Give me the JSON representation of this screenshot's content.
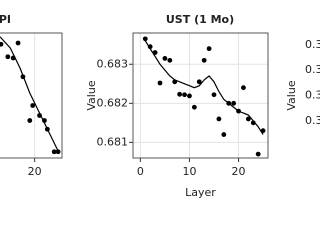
{
  "chart_data": [
    {
      "type": "scatter",
      "title": "PI",
      "xlim": [
        12.9,
        25.6
      ],
      "xticks": [
        20
      ],
      "ylim": [
        0,
        1
      ],
      "grid": true,
      "series": [
        {
          "color": "#000000",
          "style": "points",
          "x": [
            13.1,
            14.5,
            15.6,
            16.6,
            17.6,
            19.0,
            19.6,
            21.0,
            22.0,
            22.6,
            24.0,
            24.8
          ],
          "values": [
            0.91,
            0.81,
            0.8,
            0.92,
            0.65,
            0.3,
            0.42,
            0.34,
            0.3,
            0.23,
            0.05,
            0.05
          ]
        },
        {
          "color": "#000000",
          "style": "line",
          "x": [
            12.9,
            15,
            17,
            19,
            21,
            23,
            25
          ],
          "values": [
            0.97,
            0.88,
            0.72,
            0.52,
            0.36,
            0.2,
            0.04
          ]
        }
      ]
    },
    {
      "type": "scatter",
      "title": "UST (1 Mo)",
      "xlabel": "Layer",
      "ylabel": "Value",
      "xlim": [
        -1.5,
        26
      ],
      "xticks": [
        0,
        10,
        20
      ],
      "ylim": [
        0.6806,
        0.6838
      ],
      "yticks": [
        0.681,
        0.682,
        0.683
      ],
      "grid": true,
      "series": [
        {
          "color": "#000000",
          "style": "points",
          "x": [
            1,
            2,
            3,
            4,
            5,
            6,
            7,
            8,
            9,
            10,
            11,
            12,
            13,
            14,
            15,
            16,
            17,
            18,
            19,
            20,
            21,
            22,
            23,
            24,
            25
          ],
          "values": [
            0.68365,
            0.68345,
            0.6833,
            0.68252,
            0.68315,
            0.6831,
            0.68255,
            0.68223,
            0.68222,
            0.68219,
            0.6819,
            0.68255,
            0.6831,
            0.6834,
            0.68222,
            0.6816,
            0.6812,
            0.682,
            0.682,
            0.6818,
            0.6824,
            0.6816,
            0.6815,
            0.6807,
            0.6813
          ]
        },
        {
          "color": "#000000",
          "style": "line",
          "x": [
            1,
            2,
            3,
            4,
            5,
            6,
            7,
            8,
            9,
            10,
            11,
            12,
            13,
            14,
            15,
            16,
            17,
            18,
            19,
            20,
            21,
            22,
            23,
            24,
            25
          ],
          "values": [
            0.6836,
            0.6834,
            0.6832,
            0.683,
            0.68285,
            0.6827,
            0.6826,
            0.68255,
            0.6825,
            0.68245,
            0.6824,
            0.68245,
            0.6826,
            0.6827,
            0.68255,
            0.6823,
            0.6821,
            0.682,
            0.6819,
            0.6818,
            0.68175,
            0.6817,
            0.68155,
            0.6814,
            0.6812
          ]
        }
      ]
    },
    {
      "type": "scatter",
      "ylabel": "Value",
      "ylim": [
        0.2953,
        0.3447
      ],
      "yticks": [
        {
          "value": 0.34,
          "label": "0.3"
        },
        {
          "value": 0.33,
          "label": "0.3"
        },
        {
          "value": 0.32,
          "label": "0.3"
        },
        {
          "value": 0.31,
          "label": "0.3"
        }
      ],
      "series": []
    }
  ]
}
